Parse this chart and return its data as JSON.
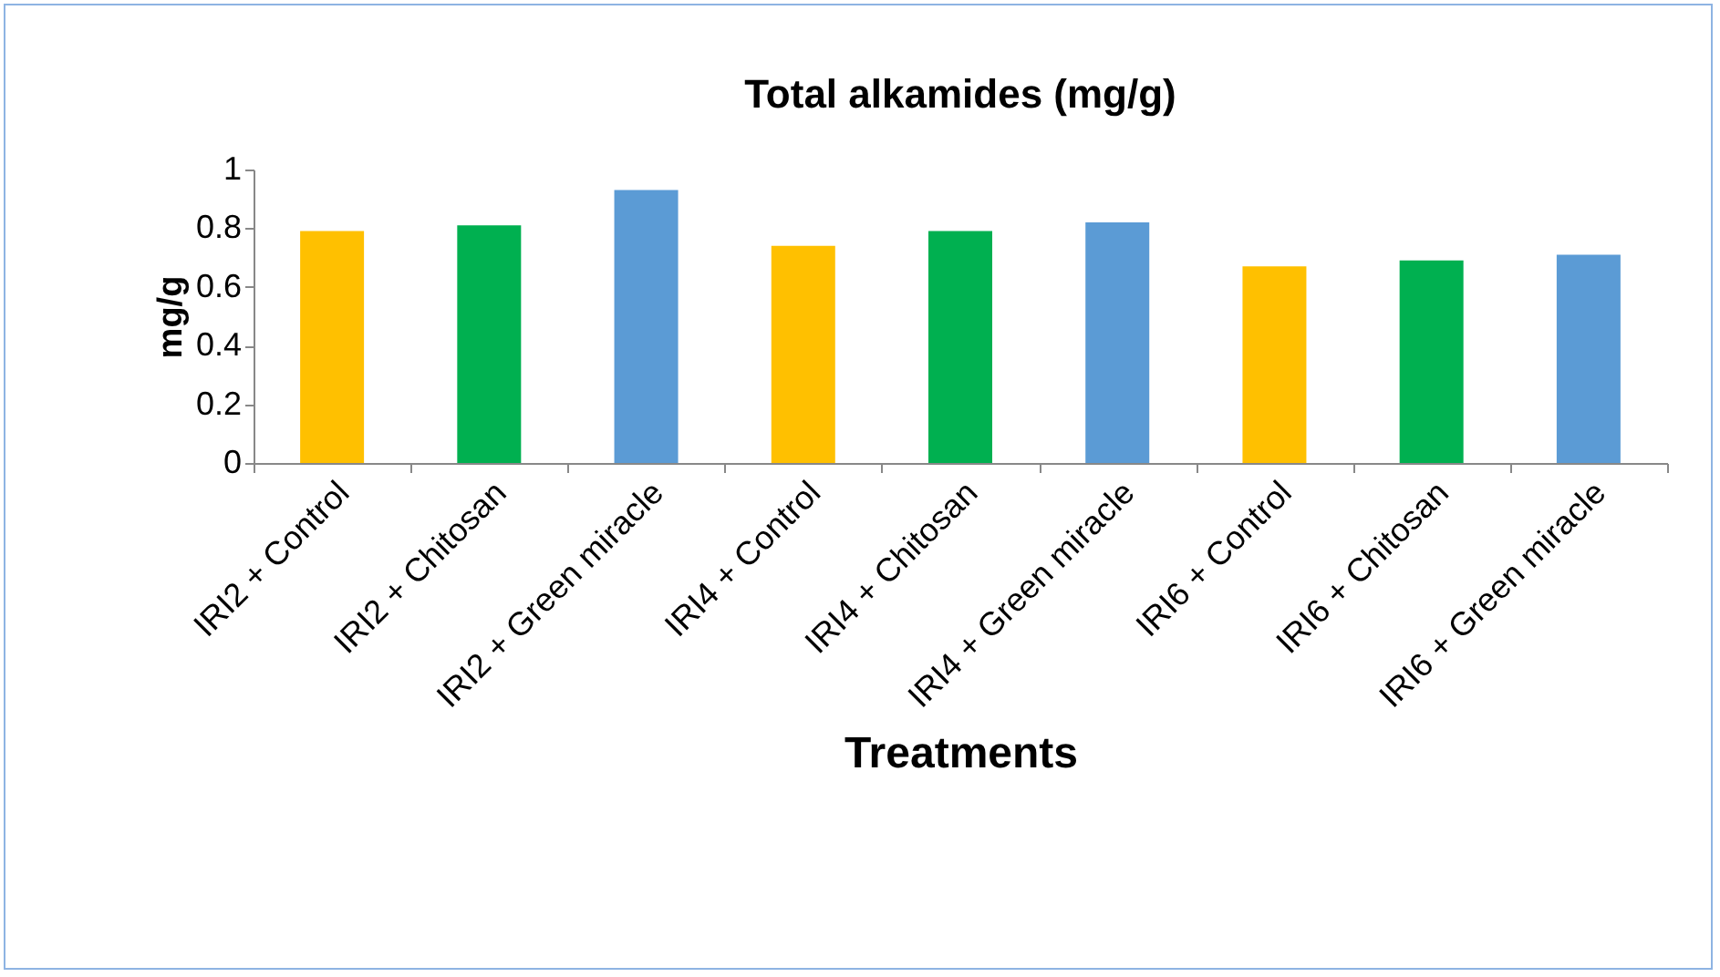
{
  "chart_data": {
    "type": "bar",
    "title": "Total alkamides (mg/g)",
    "xlabel": "Treatments",
    "ylabel": "mg/g",
    "categories": [
      "IRI2 + Control",
      "IRI2 + Chitosan",
      "IRI2 + Green miracle",
      "IRI4 + Control",
      "IRI4 + Chitosan",
      "IRI4 + Green miracle",
      "IRI6 + Control",
      "IRI6 + Chitosan",
      "IRI6 + Green miracle"
    ],
    "values": [
      0.79,
      0.81,
      0.93,
      0.74,
      0.79,
      0.82,
      0.67,
      0.69,
      0.71
    ],
    "colors": [
      "#ffc000",
      "#00b050",
      "#5b9bd5",
      "#ffc000",
      "#00b050",
      "#5b9bd5",
      "#ffc000",
      "#00b050",
      "#5b9bd5"
    ],
    "ylim": [
      0,
      1
    ],
    "yticks": [
      0,
      0.2,
      0.4,
      0.6,
      0.8,
      1
    ],
    "grid": false
  }
}
